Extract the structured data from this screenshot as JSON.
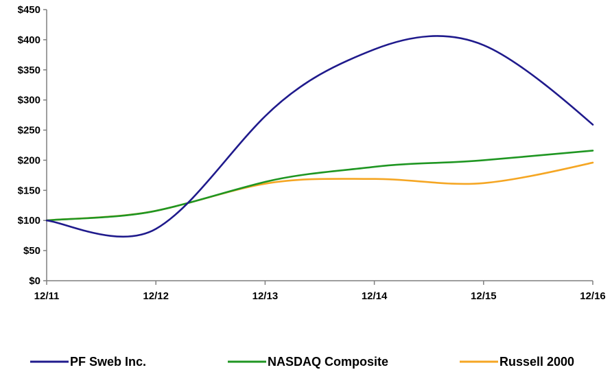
{
  "chart_data": {
    "type": "line",
    "title": "",
    "xlabel": "",
    "ylabel": "",
    "categories": [
      "12/11",
      "12/12",
      "12/13",
      "12/14",
      "12/15",
      "12/16"
    ],
    "ylim": [
      0,
      450
    ],
    "yticks": [
      0,
      50,
      100,
      150,
      200,
      250,
      300,
      350,
      400,
      450
    ],
    "ytick_labels": [
      "$0",
      "$50",
      "$100",
      "$150",
      "$200",
      "$250",
      "$300",
      "$350",
      "$400",
      "$450"
    ],
    "grid": false,
    "legend_position": "bottom",
    "series": [
      {
        "name": "PF Sweb Inc.",
        "color": "#1f1a8c",
        "values": [
          100,
          86,
          273,
          384,
          391,
          259
        ]
      },
      {
        "name": "NASDAQ Composite",
        "color": "#1f9622",
        "values": [
          100,
          116,
          164,
          189,
          200,
          216
        ]
      },
      {
        "name": "Russell 2000",
        "color": "#f5a623",
        "values": [
          100,
          116,
          161,
          169,
          162,
          196
        ]
      }
    ]
  }
}
